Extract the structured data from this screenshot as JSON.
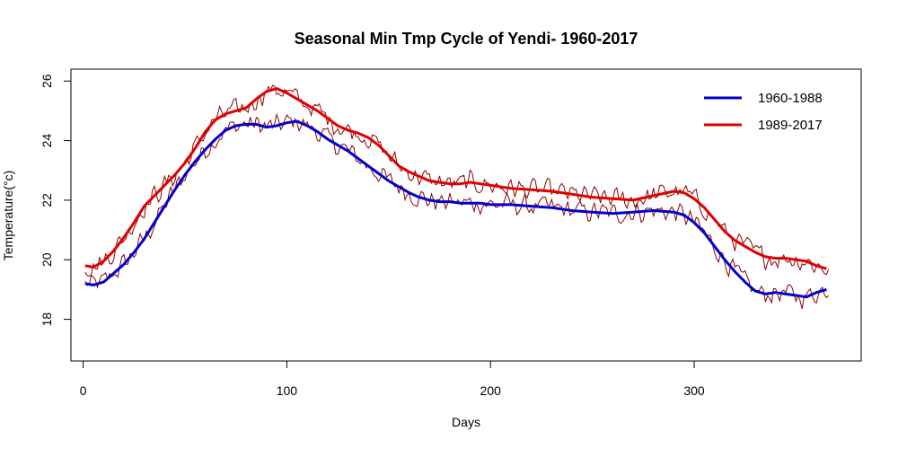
{
  "chart_data": {
    "type": "line",
    "title": "Seasonal Min Tmp Cycle of Yendi- 1960-2017",
    "xlabel": "Days",
    "ylabel": "Temperature(°c)",
    "xlim": [
      -6,
      382
    ],
    "ylim": [
      16.6,
      26.4
    ],
    "xticks": [
      0,
      100,
      200,
      300
    ],
    "yticks": [
      18,
      20,
      22,
      24,
      26
    ],
    "grid": false,
    "legend": {
      "position": "top-right"
    },
    "series": [
      {
        "name": "1960-1988",
        "color": "#0000CD",
        "line_width": 3,
        "x": [
          1,
          5,
          10,
          15,
          20,
          25,
          30,
          35,
          40,
          45,
          50,
          55,
          60,
          65,
          70,
          75,
          80,
          85,
          90,
          95,
          100,
          105,
          110,
          115,
          120,
          125,
          130,
          135,
          140,
          145,
          150,
          155,
          160,
          165,
          170,
          175,
          180,
          185,
          190,
          195,
          200,
          210,
          220,
          230,
          240,
          250,
          260,
          270,
          280,
          290,
          295,
          300,
          305,
          310,
          315,
          320,
          325,
          330,
          335,
          340,
          345,
          350,
          355,
          360,
          365
        ],
        "y": [
          19.2,
          19.15,
          19.25,
          19.55,
          19.85,
          20.25,
          20.7,
          21.25,
          21.8,
          22.35,
          22.85,
          23.3,
          23.7,
          24.05,
          24.35,
          24.5,
          24.55,
          24.55,
          24.45,
          24.5,
          24.6,
          24.65,
          24.5,
          24.3,
          24.05,
          23.85,
          23.65,
          23.4,
          23.15,
          22.9,
          22.65,
          22.45,
          22.25,
          22.1,
          22.0,
          21.95,
          21.95,
          21.9,
          21.9,
          21.9,
          21.85,
          21.85,
          21.8,
          21.75,
          21.65,
          21.6,
          21.55,
          21.6,
          21.65,
          21.6,
          21.5,
          21.25,
          20.9,
          20.45,
          20.0,
          19.6,
          19.25,
          18.95,
          18.85,
          18.9,
          18.85,
          18.8,
          18.75,
          18.9,
          19.0
        ]
      },
      {
        "name": "1989-2017",
        "color": "#E00000",
        "line_width": 3,
        "x": [
          1,
          5,
          10,
          15,
          20,
          25,
          30,
          35,
          40,
          45,
          50,
          55,
          60,
          65,
          70,
          75,
          80,
          85,
          90,
          95,
          100,
          105,
          110,
          115,
          120,
          125,
          130,
          135,
          140,
          145,
          150,
          155,
          160,
          165,
          170,
          175,
          180,
          185,
          190,
          195,
          200,
          210,
          220,
          230,
          240,
          250,
          260,
          270,
          280,
          290,
          295,
          300,
          305,
          310,
          315,
          320,
          325,
          330,
          335,
          340,
          345,
          350,
          355,
          360,
          365
        ],
        "y": [
          19.8,
          19.75,
          19.95,
          20.3,
          20.75,
          21.25,
          21.8,
          22.15,
          22.5,
          22.85,
          23.25,
          23.75,
          24.3,
          24.7,
          24.9,
          25.0,
          25.1,
          25.4,
          25.65,
          25.75,
          25.6,
          25.4,
          25.2,
          25.0,
          24.75,
          24.5,
          24.35,
          24.25,
          24.1,
          23.85,
          23.5,
          23.15,
          22.95,
          22.8,
          22.65,
          22.6,
          22.55,
          22.55,
          22.6,
          22.55,
          22.5,
          22.4,
          22.35,
          22.3,
          22.2,
          22.1,
          22.05,
          22.0,
          22.15,
          22.3,
          22.25,
          22.05,
          21.75,
          21.35,
          20.95,
          20.65,
          20.45,
          20.25,
          20.1,
          20.05,
          20.05,
          20.0,
          19.95,
          19.8,
          19.7
        ]
      }
    ],
    "raw_series": {
      "color": "#8B0000",
      "line_width": 1,
      "bands": [
        {
          "base_series": 0,
          "noise_amplitude": 0.45
        },
        {
          "base_series": 1,
          "noise_amplitude": 0.45
        }
      ]
    }
  }
}
